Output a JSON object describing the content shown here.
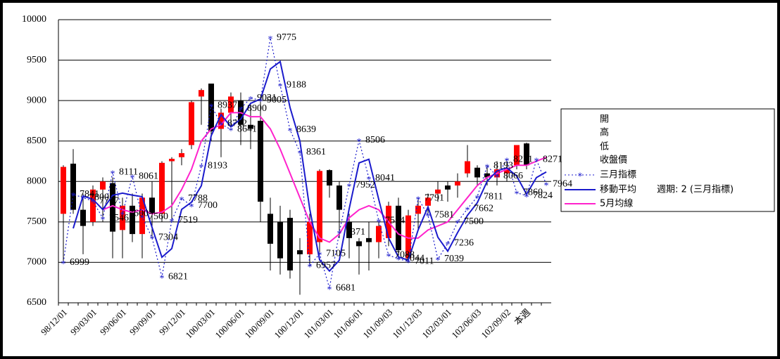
{
  "chart_data": {
    "type": "candlestick",
    "categories": [
      "98/12/01",
      null,
      null,
      "99/03/01",
      null,
      null,
      "99/06/01",
      null,
      null,
      "99/09/01",
      null,
      null,
      "99/12/01",
      null,
      null,
      "100/03/01",
      null,
      null,
      "100/06/01",
      null,
      null,
      "100/09/01",
      null,
      null,
      "100/12/01",
      null,
      null,
      "101/03/01",
      null,
      null,
      "101/06/01",
      null,
      null,
      "101/09/03",
      null,
      null,
      "101/12/03",
      null,
      null,
      "102/03/01",
      null,
      null,
      "102/06/03",
      null,
      null,
      "102/09/02",
      null,
      "本週",
      null,
      null
    ],
    "ylim": [
      6500,
      10000
    ],
    "yticks": [
      6500,
      7000,
      7500,
      8000,
      8500,
      9000,
      9500,
      10000
    ],
    "grid": true,
    "up_color": "#ff0000",
    "down_color": "#000000",
    "series": [
      {
        "name": "開",
        "values": [
          7600,
          8220,
          7650,
          7500,
          7900,
          7980,
          7400,
          7700,
          7350,
          7800,
          7600,
          8250,
          8300,
          8450,
          9050,
          9210,
          8650,
          8850,
          9000,
          8700,
          8750,
          7600,
          7500,
          7550,
          7150,
          7100,
          7250,
          8140,
          7950,
          7500,
          7260,
          7300,
          7250,
          7300,
          7700,
          7050,
          7600,
          7700,
          7850,
          7950,
          7950,
          8100,
          8170,
          8100,
          8050,
          8100,
          8200,
          8470,
          null,
          null
        ]
      },
      {
        "name": "高",
        "values": [
          8200,
          8400,
          7850,
          7950,
          8050,
          8050,
          7800,
          7850,
          7850,
          8000,
          8250,
          8300,
          8400,
          9000,
          9150,
          9210,
          8900,
          9100,
          9100,
          8950,
          9000,
          7800,
          7700,
          7650,
          7300,
          7600,
          8150,
          8150,
          8000,
          7600,
          7300,
          7500,
          7500,
          7750,
          7800,
          7650,
          7800,
          7850,
          8000,
          8000,
          8100,
          8450,
          8200,
          8200,
          8250,
          8250,
          8450,
          8480,
          null,
          null
        ]
      },
      {
        "name": "低",
        "values": [
          7000,
          7600,
          7100,
          7450,
          7500,
          7050,
          7050,
          7250,
          7050,
          7300,
          7500,
          7500,
          8200,
          8400,
          8700,
          8500,
          8300,
          8700,
          8450,
          8400,
          7500,
          6900,
          6850,
          6800,
          6600,
          6950,
          7100,
          7800,
          7300,
          7050,
          6850,
          6900,
          7050,
          7200,
          7050,
          7000,
          7400,
          7600,
          7750,
          7750,
          7800,
          8050,
          7950,
          7950,
          7950,
          8000,
          8150,
          8150,
          null,
          null
        ]
      },
      {
        "name": "收盤價",
        "values": [
          8180,
          7650,
          7450,
          7900,
          8000,
          7380,
          7700,
          7350,
          7800,
          7600,
          8230,
          8280,
          8350,
          8980,
          9130,
          8620,
          8850,
          9050,
          8700,
          8650,
          7750,
          7230,
          7050,
          6900,
          7100,
          7500,
          8130,
          7950,
          7650,
          7300,
          7200,
          7250,
          7450,
          7700,
          7150,
          7580,
          7700,
          7800,
          7900,
          7900,
          8000,
          8250,
          8050,
          8050,
          8150,
          8150,
          8450,
          8200,
          null,
          null
        ]
      },
      {
        "name": "三月指標",
        "color": "#1a1acc",
        "values": [
          6999,
          7841,
          7800,
          7757,
          7546,
          8111,
          7600,
          8061,
          7560,
          7304,
          6821,
          7519,
          7788,
          7700,
          8193,
          8937,
          8712,
          8641,
          8900,
          9031,
          9005,
          9775,
          9188,
          8639,
          8361,
          6957,
          7105,
          6681,
          7371,
          7952,
          8506,
          8041,
          7514,
          7088,
          7044,
          7011,
          7791,
          7581,
          7039,
          7236,
          7500,
          7662,
          7811,
          8193,
          8066,
          8271,
          7860,
          7824,
          8271,
          7964
        ]
      },
      {
        "name": "移動平均",
        "color": "#1a1acc",
        "values": [
          null,
          7420,
          7821,
          7779,
          7652,
          7829,
          7856,
          7831,
          7811,
          7432,
          7063,
          7170,
          7654,
          7744,
          7947,
          8565,
          8825,
          8677,
          8771,
          8966,
          9018,
          9390,
          9482,
          8914,
          8500,
          7659,
          7031,
          6893,
          7026,
          7662,
          8229,
          8274,
          7778,
          7301,
          7066,
          7028,
          7401,
          7686,
          7310,
          7138,
          7368,
          7581,
          7737,
          8002,
          8130,
          8169,
          8066,
          7842,
          8048,
          8118
        ]
      },
      {
        "name": "5月均線",
        "color": "#ff22cc",
        "values": [
          null,
          null,
          null,
          null,
          7650,
          7700,
          7650,
          7620,
          7650,
          7600,
          7620,
          7700,
          7900,
          8150,
          8500,
          8650,
          8700,
          8850,
          8850,
          8800,
          8800,
          8650,
          8400,
          8100,
          7800,
          7500,
          7300,
          7250,
          7350,
          7550,
          7650,
          7700,
          7650,
          7500,
          7350,
          7300,
          7300,
          7400,
          7450,
          7500,
          7650,
          7800,
          7950,
          8050,
          8100,
          8150,
          8200,
          8200,
          8250,
          8300
        ]
      }
    ],
    "legend_note": "週期: 2 (三月指標)"
  }
}
